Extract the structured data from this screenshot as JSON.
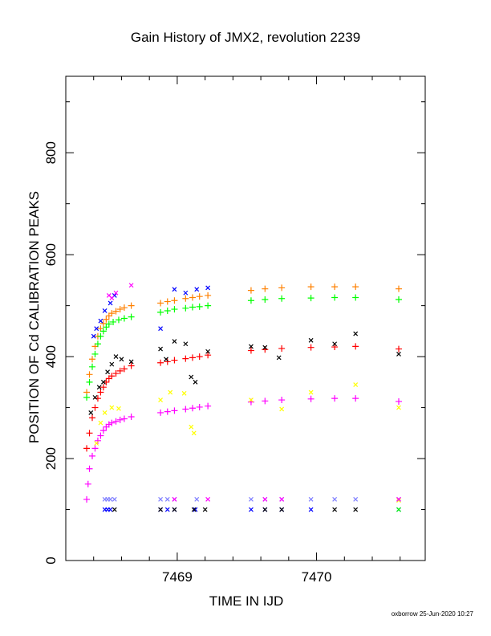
{
  "chart_data": {
    "type": "scatter",
    "title": "Gain History of JMX2, revolution 2239",
    "xlabel": "TIME IN IJD",
    "ylabel": "POSITION OF Cd CALIBRATION PEAKS",
    "xlim": [
      7468.2,
      7470.78
    ],
    "ylim": [
      0,
      950
    ],
    "x_ticks": [
      7469,
      7470
    ],
    "y_ticks": [
      0,
      200,
      400,
      600,
      800
    ],
    "grid": false,
    "series": [
      {
        "color": "#ff8000",
        "marker": "plus",
        "points": [
          [
            7468.35,
            330
          ],
          [
            7468.37,
            365
          ],
          [
            7468.39,
            395
          ],
          [
            7468.41,
            420
          ],
          [
            7468.43,
            440
          ],
          [
            7468.45,
            455
          ],
          [
            7468.47,
            465
          ],
          [
            7468.49,
            473
          ],
          [
            7468.51,
            480
          ],
          [
            7468.53,
            485
          ],
          [
            7468.56,
            489
          ],
          [
            7468.59,
            493
          ],
          [
            7468.62,
            496
          ],
          [
            7468.67,
            500
          ],
          [
            7468.88,
            505
          ],
          [
            7468.93,
            508
          ],
          [
            7468.98,
            510
          ],
          [
            7469.06,
            514
          ],
          [
            7469.11,
            516
          ],
          [
            7469.16,
            518
          ],
          [
            7469.22,
            520
          ],
          [
            7469.53,
            530
          ],
          [
            7469.63,
            533
          ],
          [
            7469.75,
            535
          ],
          [
            7469.96,
            537
          ],
          [
            7470.13,
            537
          ],
          [
            7470.28,
            537
          ],
          [
            7470.59,
            533
          ]
        ]
      },
      {
        "color": "#00ff00",
        "marker": "plus",
        "points": [
          [
            7468.35,
            320
          ],
          [
            7468.37,
            350
          ],
          [
            7468.39,
            380
          ],
          [
            7468.41,
            405
          ],
          [
            7468.43,
            425
          ],
          [
            7468.45,
            440
          ],
          [
            7468.47,
            450
          ],
          [
            7468.49,
            458
          ],
          [
            7468.51,
            464
          ],
          [
            7468.54,
            468
          ],
          [
            7468.58,
            472
          ],
          [
            7468.62,
            475
          ],
          [
            7468.67,
            478
          ],
          [
            7468.88,
            487
          ],
          [
            7468.93,
            490
          ],
          [
            7468.98,
            493
          ],
          [
            7469.06,
            495
          ],
          [
            7469.11,
            497
          ],
          [
            7469.16,
            498
          ],
          [
            7469.22,
            500
          ],
          [
            7469.53,
            510
          ],
          [
            7469.63,
            512
          ],
          [
            7469.75,
            514
          ],
          [
            7469.96,
            515
          ],
          [
            7470.13,
            516
          ],
          [
            7470.28,
            516
          ],
          [
            7470.59,
            512
          ]
        ]
      },
      {
        "color": "#ff0000",
        "marker": "plus",
        "points": [
          [
            7468.35,
            220
          ],
          [
            7468.37,
            250
          ],
          [
            7468.39,
            280
          ],
          [
            7468.41,
            300
          ],
          [
            7468.43,
            318
          ],
          [
            7468.45,
            330
          ],
          [
            7468.47,
            340
          ],
          [
            7468.49,
            350
          ],
          [
            7468.51,
            357
          ],
          [
            7468.53,
            362
          ],
          [
            7468.56,
            367
          ],
          [
            7468.59,
            372
          ],
          [
            7468.62,
            376
          ],
          [
            7468.67,
            382
          ],
          [
            7468.88,
            388
          ],
          [
            7468.93,
            390
          ],
          [
            7468.98,
            393
          ],
          [
            7469.06,
            396
          ],
          [
            7469.11,
            398
          ],
          [
            7469.16,
            400
          ],
          [
            7469.22,
            403
          ],
          [
            7469.53,
            412
          ],
          [
            7469.63,
            414
          ],
          [
            7469.75,
            416
          ],
          [
            7469.96,
            418
          ],
          [
            7470.13,
            419
          ],
          [
            7470.28,
            420
          ],
          [
            7470.59,
            415
          ]
        ]
      },
      {
        "color": "#ff00ff",
        "marker": "plus",
        "points": [
          [
            7468.35,
            120
          ],
          [
            7468.36,
            150
          ],
          [
            7468.37,
            180
          ],
          [
            7468.39,
            205
          ],
          [
            7468.41,
            220
          ],
          [
            7468.43,
            235
          ],
          [
            7468.45,
            245
          ],
          [
            7468.47,
            255
          ],
          [
            7468.49,
            262
          ],
          [
            7468.51,
            267
          ],
          [
            7468.53,
            270
          ],
          [
            7468.56,
            273
          ],
          [
            7468.59,
            276
          ],
          [
            7468.62,
            278
          ],
          [
            7468.67,
            282
          ],
          [
            7468.88,
            290
          ],
          [
            7468.93,
            292
          ],
          [
            7468.98,
            294
          ],
          [
            7469.06,
            297
          ],
          [
            7469.11,
            299
          ],
          [
            7469.16,
            301
          ],
          [
            7469.22,
            303
          ],
          [
            7469.53,
            311
          ],
          [
            7469.63,
            313
          ],
          [
            7469.75,
            315
          ],
          [
            7469.96,
            317
          ],
          [
            7470.13,
            318
          ],
          [
            7470.28,
            318
          ],
          [
            7470.59,
            312
          ]
        ]
      },
      {
        "color": "#0000ff",
        "marker": "x",
        "points": [
          [
            7468.4,
            440
          ],
          [
            7468.42,
            455
          ],
          [
            7468.45,
            470
          ],
          [
            7468.48,
            490
          ],
          [
            7468.52,
            505
          ],
          [
            7468.55,
            520
          ],
          [
            7468.88,
            455
          ],
          [
            7468.98,
            532
          ],
          [
            7469.06,
            525
          ],
          [
            7469.14,
            532
          ],
          [
            7469.22,
            535
          ],
          [
            7468.48,
            100
          ],
          [
            7468.5,
            100
          ],
          [
            7468.52,
            100
          ],
          [
            7468.88,
            100
          ],
          [
            7468.93,
            100
          ],
          [
            7468.98,
            100
          ],
          [
            7469.13,
            100
          ],
          [
            7469.53,
            100
          ],
          [
            7469.63,
            100
          ],
          [
            7469.75,
            100
          ],
          [
            7469.96,
            100
          ],
          [
            7470.59,
            100
          ]
        ]
      },
      {
        "color": "#000000",
        "marker": "x",
        "points": [
          [
            7468.38,
            290
          ],
          [
            7468.41,
            320
          ],
          [
            7468.44,
            340
          ],
          [
            7468.47,
            350
          ],
          [
            7468.5,
            370
          ],
          [
            7468.53,
            385
          ],
          [
            7468.56,
            400
          ],
          [
            7468.6,
            395
          ],
          [
            7468.67,
            390
          ],
          [
            7468.88,
            415
          ],
          [
            7468.92,
            395
          ],
          [
            7468.98,
            430
          ],
          [
            7469.06,
            425
          ],
          [
            7469.1,
            360
          ],
          [
            7469.13,
            350
          ],
          [
            7469.22,
            410
          ],
          [
            7469.53,
            420
          ],
          [
            7469.63,
            418
          ],
          [
            7469.73,
            398
          ],
          [
            7469.96,
            432
          ],
          [
            7470.13,
            425
          ],
          [
            7470.28,
            445
          ],
          [
            7470.59,
            405
          ],
          [
            7468.55,
            100
          ],
          [
            7468.88,
            100
          ],
          [
            7468.98,
            100
          ],
          [
            7469.12,
            100
          ],
          [
            7469.2,
            100
          ],
          [
            7469.63,
            100
          ],
          [
            7469.75,
            100
          ],
          [
            7470.13,
            100
          ],
          [
            7470.28,
            100
          ]
        ]
      },
      {
        "color": "#ffff00",
        "marker": "x",
        "points": [
          [
            7468.42,
            230
          ],
          [
            7468.45,
            270
          ],
          [
            7468.48,
            290
          ],
          [
            7468.53,
            300
          ],
          [
            7468.58,
            298
          ],
          [
            7468.88,
            315
          ],
          [
            7468.95,
            330
          ],
          [
            7469.05,
            328
          ],
          [
            7469.1,
            262
          ],
          [
            7469.12,
            250
          ],
          [
            7469.53,
            315
          ],
          [
            7469.75,
            297
          ],
          [
            7469.96,
            330
          ],
          [
            7470.28,
            345
          ],
          [
            7470.59,
            300
          ],
          [
            7470.59,
            118
          ]
        ]
      },
      {
        "color": "#8080ff",
        "marker": "x",
        "points": [
          [
            7468.48,
            120
          ],
          [
            7468.5,
            120
          ],
          [
            7468.52,
            120
          ],
          [
            7468.55,
            120
          ],
          [
            7468.88,
            120
          ],
          [
            7468.93,
            120
          ],
          [
            7468.98,
            120
          ],
          [
            7469.14,
            120
          ],
          [
            7469.53,
            120
          ],
          [
            7469.63,
            120
          ],
          [
            7469.75,
            120
          ],
          [
            7469.96,
            120
          ],
          [
            7470.13,
            120
          ],
          [
            7470.28,
            120
          ],
          [
            7470.59,
            120
          ]
        ]
      },
      {
        "color": "#ff00ff",
        "marker": "x",
        "points": [
          [
            7468.51,
            520
          ],
          [
            7468.53,
            515
          ],
          [
            7468.56,
            525
          ],
          [
            7468.67,
            540
          ],
          [
            7468.98,
            120
          ],
          [
            7469.22,
            120
          ],
          [
            7469.63,
            120
          ],
          [
            7469.75,
            120
          ],
          [
            7470.59,
            120
          ]
        ]
      },
      {
        "color": "#00ff00",
        "marker": "x",
        "points": [
          [
            7470.59,
            100
          ]
        ]
      }
    ]
  },
  "footer": "oxborrow 25-Jun-2020 10:27"
}
